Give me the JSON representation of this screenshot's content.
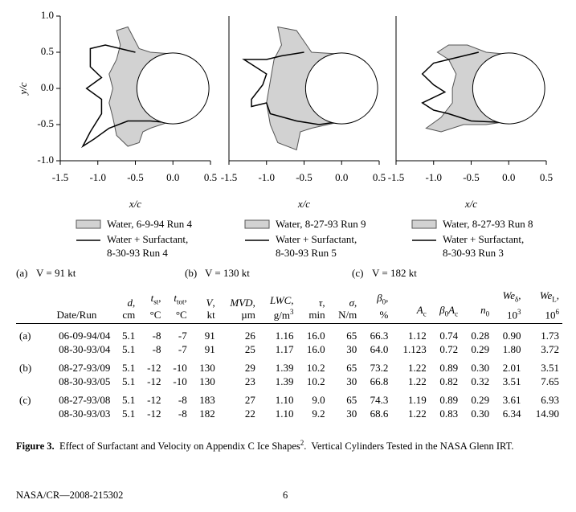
{
  "figure": {
    "ylabel": "y/c",
    "panels": [
      {
        "xlabel": "x/c",
        "xlim": [
          -1.5,
          0.5
        ],
        "ylim": [
          -1,
          1
        ],
        "xticks": [
          -1.5,
          {
            "value": -1,
            "label": "-1.0"
          },
          -0.5,
          {
            "value": 0,
            "label": "0.0"
          },
          0.5
        ],
        "yticks": [
          {
            "value": -1,
            "label": "-1.0"
          },
          -0.5,
          {
            "value": 0,
            "label": "0.0"
          },
          0.5,
          {
            "value": 1,
            "label": "1.0"
          }
        ],
        "legend": {
          "water": "Water, 6-9-94 Run 4",
          "surf1": "Water + Surfactant,",
          "surf2": "8-30-93 Run 4"
        },
        "label": "(a)",
        "velocity": "V = 91 kt"
      },
      {
        "xlabel": "x/c",
        "xlim": [
          -1.5,
          0.5
        ],
        "ylim": [
          -1,
          1
        ],
        "xticks": [
          -1.5,
          {
            "value": -1,
            "label": "-1.0"
          },
          -0.5,
          {
            "value": 0,
            "label": "0.0"
          },
          0.5
        ],
        "legend": {
          "water": "Water, 8-27-93 Run 9",
          "surf1": "Water + Surfactant,",
          "surf2": "8-30-93 Run 5"
        },
        "label": "(b)",
        "velocity": "V = 130 kt"
      },
      {
        "xlabel": "x/c",
        "xlim": [
          -1.5,
          0.5
        ],
        "ylim": [
          -1,
          1
        ],
        "xticks": [
          -1.5,
          {
            "value": -1,
            "label": "-1.0"
          },
          -0.5,
          {
            "value": 0,
            "label": "0.0"
          },
          0.5
        ],
        "legend": {
          "water": "Water, 8-27-93 Run 8",
          "surf1": "Water + Surfactant,",
          "surf2": "8-30-93 Run 3"
        },
        "label": "(c)",
        "velocity": "V = 182 kt"
      }
    ]
  },
  "table": {
    "header": [
      {
        "line1": [],
        "line2": [
          {
            "text": "Date/Run"
          }
        ]
      },
      {
        "line1": [
          {
            "text": "d",
            "style": "i"
          },
          {
            "text": ","
          }
        ],
        "line2": [
          {
            "text": "cm"
          }
        ]
      },
      {
        "line1": [
          {
            "text": "t",
            "style": "i"
          },
          {
            "text": "st",
            "style": "sub"
          },
          {
            "text": ","
          }
        ],
        "line2": [
          {
            "text": "°C"
          }
        ]
      },
      {
        "line1": [
          {
            "text": "t",
            "style": "i"
          },
          {
            "text": "tot",
            "style": "sub"
          },
          {
            "text": ","
          }
        ],
        "line2": [
          {
            "text": "°C"
          }
        ]
      },
      {
        "line1": [
          {
            "text": "V",
            "style": "i"
          },
          {
            "text": ","
          }
        ],
        "line2": [
          {
            "text": "kt"
          }
        ]
      },
      {
        "line1": [
          {
            "text": "MVD",
            "style": "i"
          },
          {
            "text": ","
          }
        ],
        "line2": [
          {
            "text": "µm"
          }
        ]
      },
      {
        "line1": [
          {
            "text": "LWC",
            "style": "i"
          },
          {
            "text": ","
          }
        ],
        "line2": [
          {
            "text": "g/m"
          },
          {
            "text": "3",
            "style": "sup"
          }
        ]
      },
      {
        "line1": [
          {
            "text": "τ",
            "style": "i"
          },
          {
            "text": ","
          }
        ],
        "line2": [
          {
            "text": "min"
          }
        ]
      },
      {
        "line1": [
          {
            "text": "σ",
            "style": "i"
          },
          {
            "text": ","
          }
        ],
        "line2": [
          {
            "text": "N/m"
          }
        ]
      },
      {
        "line1": [
          {
            "text": "β",
            "style": "i"
          },
          {
            "text": "0",
            "style": "sub"
          },
          {
            "text": ","
          }
        ],
        "line2": [
          {
            "text": "%"
          }
        ]
      },
      {
        "line1": [],
        "line2": [
          {
            "text": "A",
            "style": "i"
          },
          {
            "text": "c",
            "style": "sub"
          }
        ]
      },
      {
        "line1": [],
        "line2": [
          {
            "text": "β",
            "style": "i"
          },
          {
            "text": "0",
            "style": "sub"
          },
          {
            "text": "A",
            "style": "i"
          },
          {
            "text": "c",
            "style": "sub"
          }
        ]
      },
      {
        "line1": [],
        "line2": [
          {
            "text": "n",
            "style": "i"
          },
          {
            "text": "0",
            "style": "sub"
          }
        ]
      },
      {
        "line1": [
          {
            "text": "We",
            "style": "i"
          },
          {
            "text": "δ",
            "style": "sub"
          },
          {
            "text": ","
          }
        ],
        "line2": [
          {
            "text": "10"
          },
          {
            "text": "3",
            "style": "sup"
          }
        ]
      },
      {
        "line1": [
          {
            "text": "We",
            "style": "i"
          },
          {
            "text": "L",
            "style": "sub"
          },
          {
            "text": ","
          }
        ],
        "line2": [
          {
            "text": "10"
          },
          {
            "text": "6",
            "style": "sup"
          }
        ]
      }
    ],
    "groups": [
      {
        "label": "(a)",
        "rows": [
          [
            "06-09-94/04",
            "5.1",
            "-8",
            "-7",
            "91",
            "26",
            "1.16",
            "16.0",
            "65",
            "66.3",
            "1.12",
            "0.74",
            "0.28",
            "0.90",
            "1.73"
          ],
          [
            "08-30-93/04",
            "5.1",
            "-8",
            "-7",
            "91",
            "25",
            "1.17",
            "16.0",
            "30",
            "64.0",
            "1.123",
            "0.72",
            "0.29",
            "1.80",
            "3.72"
          ]
        ]
      },
      {
        "label": "(b)",
        "rows": [
          [
            "08-27-93/09",
            "5.1",
            "-12",
            "-10",
            "130",
            "29",
            "1.39",
            "10.2",
            "65",
            "73.2",
            "1.22",
            "0.89",
            "0.30",
            "2.01",
            "3.51"
          ],
          [
            "08-30-93/05",
            "5.1",
            "-12",
            "-10",
            "130",
            "23",
            "1.39",
            "10.2",
            "30",
            "66.8",
            "1.22",
            "0.82",
            "0.32",
            "3.51",
            "7.65"
          ]
        ]
      },
      {
        "label": "(c)",
        "rows": [
          [
            "08-27-93/08",
            "5.1",
            "-12",
            "-8",
            "183",
            "27",
            "1.10",
            "9.0",
            "65",
            "74.3",
            "1.19",
            "0.89",
            "0.29",
            "3.61",
            "6.93"
          ],
          [
            "08-30-93/03",
            "5.1",
            "-12",
            "-8",
            "182",
            "22",
            "1.10",
            "9.2",
            "30",
            "68.6",
            "1.22",
            "0.83",
            "0.30",
            "6.34",
            "14.90"
          ]
        ]
      }
    ]
  },
  "caption": {
    "label": "Figure 3.",
    "text": "  Effect of Surfactant and Velocity on Appendix C Ice Shapes",
    "sup": "2",
    "text2": ".  Vertical Cylinders Tested in the NASA Glenn IRT."
  },
  "footer": {
    "report": "NASA/CR—2008-215302",
    "page": "6"
  }
}
